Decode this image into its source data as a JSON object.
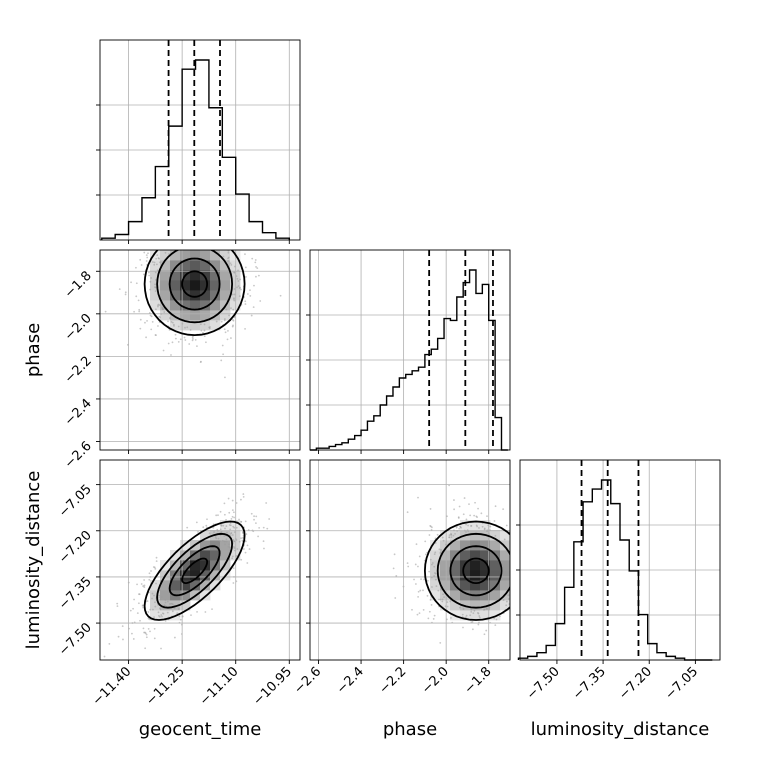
{
  "chart_data": {
    "type": "corner",
    "parameters": [
      {
        "name": "geocent_time",
        "label": "geocent_time",
        "range": [
          -11.48,
          -10.92
        ],
        "ticks": [
          -11.4,
          -11.25,
          -11.1,
          -10.95
        ],
        "tick_labels": [
          "−11.40",
          "−11.25",
          "−11.10",
          "−10.95"
        ],
        "quantiles": [
          -11.288,
          -11.216,
          -11.144
        ],
        "center": -11.215,
        "sigma": 0.07
      },
      {
        "name": "phase",
        "label": "phase",
        "range": [
          -2.64,
          -1.7
        ],
        "ticks": [
          -2.6,
          -2.4,
          -2.2,
          -2.0,
          -1.8
        ],
        "tick_labels": [
          "−2.6",
          "−2.4",
          "−2.2",
          "−2.0",
          "−1.8"
        ],
        "quantiles": [
          -2.08,
          -1.91,
          -1.78
        ],
        "center": -1.86,
        "sigma": 0.12
      },
      {
        "name": "luminosity_distance",
        "label": "luminosity_distance",
        "range": [
          -7.62,
          -6.97
        ],
        "ticks": [
          -7.5,
          -7.35,
          -7.2,
          -7.05
        ],
        "tick_labels": [
          "−7.50",
          "−7.35",
          "−7.20",
          "−7.05"
        ],
        "quantiles": [
          -7.42,
          -7.335,
          -7.235
        ],
        "center": -7.33,
        "sigma": 0.08
      }
    ],
    "histograms": [
      {
        "parameter": "geocent_time",
        "bins": [
          -11.475,
          -11.4375,
          -11.4,
          -11.3625,
          -11.325,
          -11.2875,
          -11.25,
          -11.2125,
          -11.175,
          -11.1375,
          -11.1,
          -11.0625,
          -11.025,
          -10.9875,
          -10.95
        ],
        "counts": [
          0.01,
          0.03,
          0.1,
          0.23,
          0.4,
          0.62,
          0.93,
          0.98,
          0.72,
          0.45,
          0.25,
          0.1,
          0.04,
          0.01
        ]
      },
      {
        "parameter": "phase",
        "bins": [
          -2.64,
          -2.61,
          -2.58,
          -2.55,
          -2.52,
          -2.49,
          -2.46,
          -2.43,
          -2.4,
          -2.37,
          -2.34,
          -2.31,
          -2.28,
          -2.25,
          -2.22,
          -2.19,
          -2.16,
          -2.13,
          -2.1,
          -2.07,
          -2.04,
          -2.01,
          -1.98,
          -1.95,
          -1.92,
          -1.89,
          -1.86,
          -1.83,
          -1.8,
          -1.77,
          -1.74,
          -1.71
        ],
        "counts": [
          0.0,
          0.01,
          0.01,
          0.02,
          0.03,
          0.04,
          0.06,
          0.08,
          0.11,
          0.16,
          0.19,
          0.25,
          0.3,
          0.35,
          0.4,
          0.42,
          0.44,
          0.46,
          0.53,
          0.56,
          0.62,
          0.73,
          0.72,
          0.85,
          0.93,
          1.0,
          0.87,
          0.92,
          0.72,
          0.18,
          0.0
        ]
      },
      {
        "parameter": "luminosity_distance",
        "bins": [
          -7.625,
          -7.595,
          -7.565,
          -7.535,
          -7.505,
          -7.475,
          -7.445,
          -7.415,
          -7.385,
          -7.355,
          -7.325,
          -7.295,
          -7.265,
          -7.235,
          -7.205,
          -7.175,
          -7.145,
          -7.115,
          -7.085,
          -7.055,
          -7.025,
          -6.995
        ],
        "counts": [
          0.01,
          0.02,
          0.04,
          0.08,
          0.2,
          0.4,
          0.65,
          0.87,
          0.94,
          0.99,
          0.86,
          0.66,
          0.49,
          0.25,
          0.09,
          0.04,
          0.02,
          0.01,
          0.0,
          0.0,
          0.0
        ]
      }
    ],
    "pairs": [
      {
        "x": "geocent_time",
        "y": "phase",
        "correlation": 0.0
      },
      {
        "x": "geocent_time",
        "y": "luminosity_distance",
        "correlation": 0.72
      },
      {
        "x": "phase",
        "y": "luminosity_distance",
        "correlation": 0.0
      }
    ],
    "grid": true
  }
}
